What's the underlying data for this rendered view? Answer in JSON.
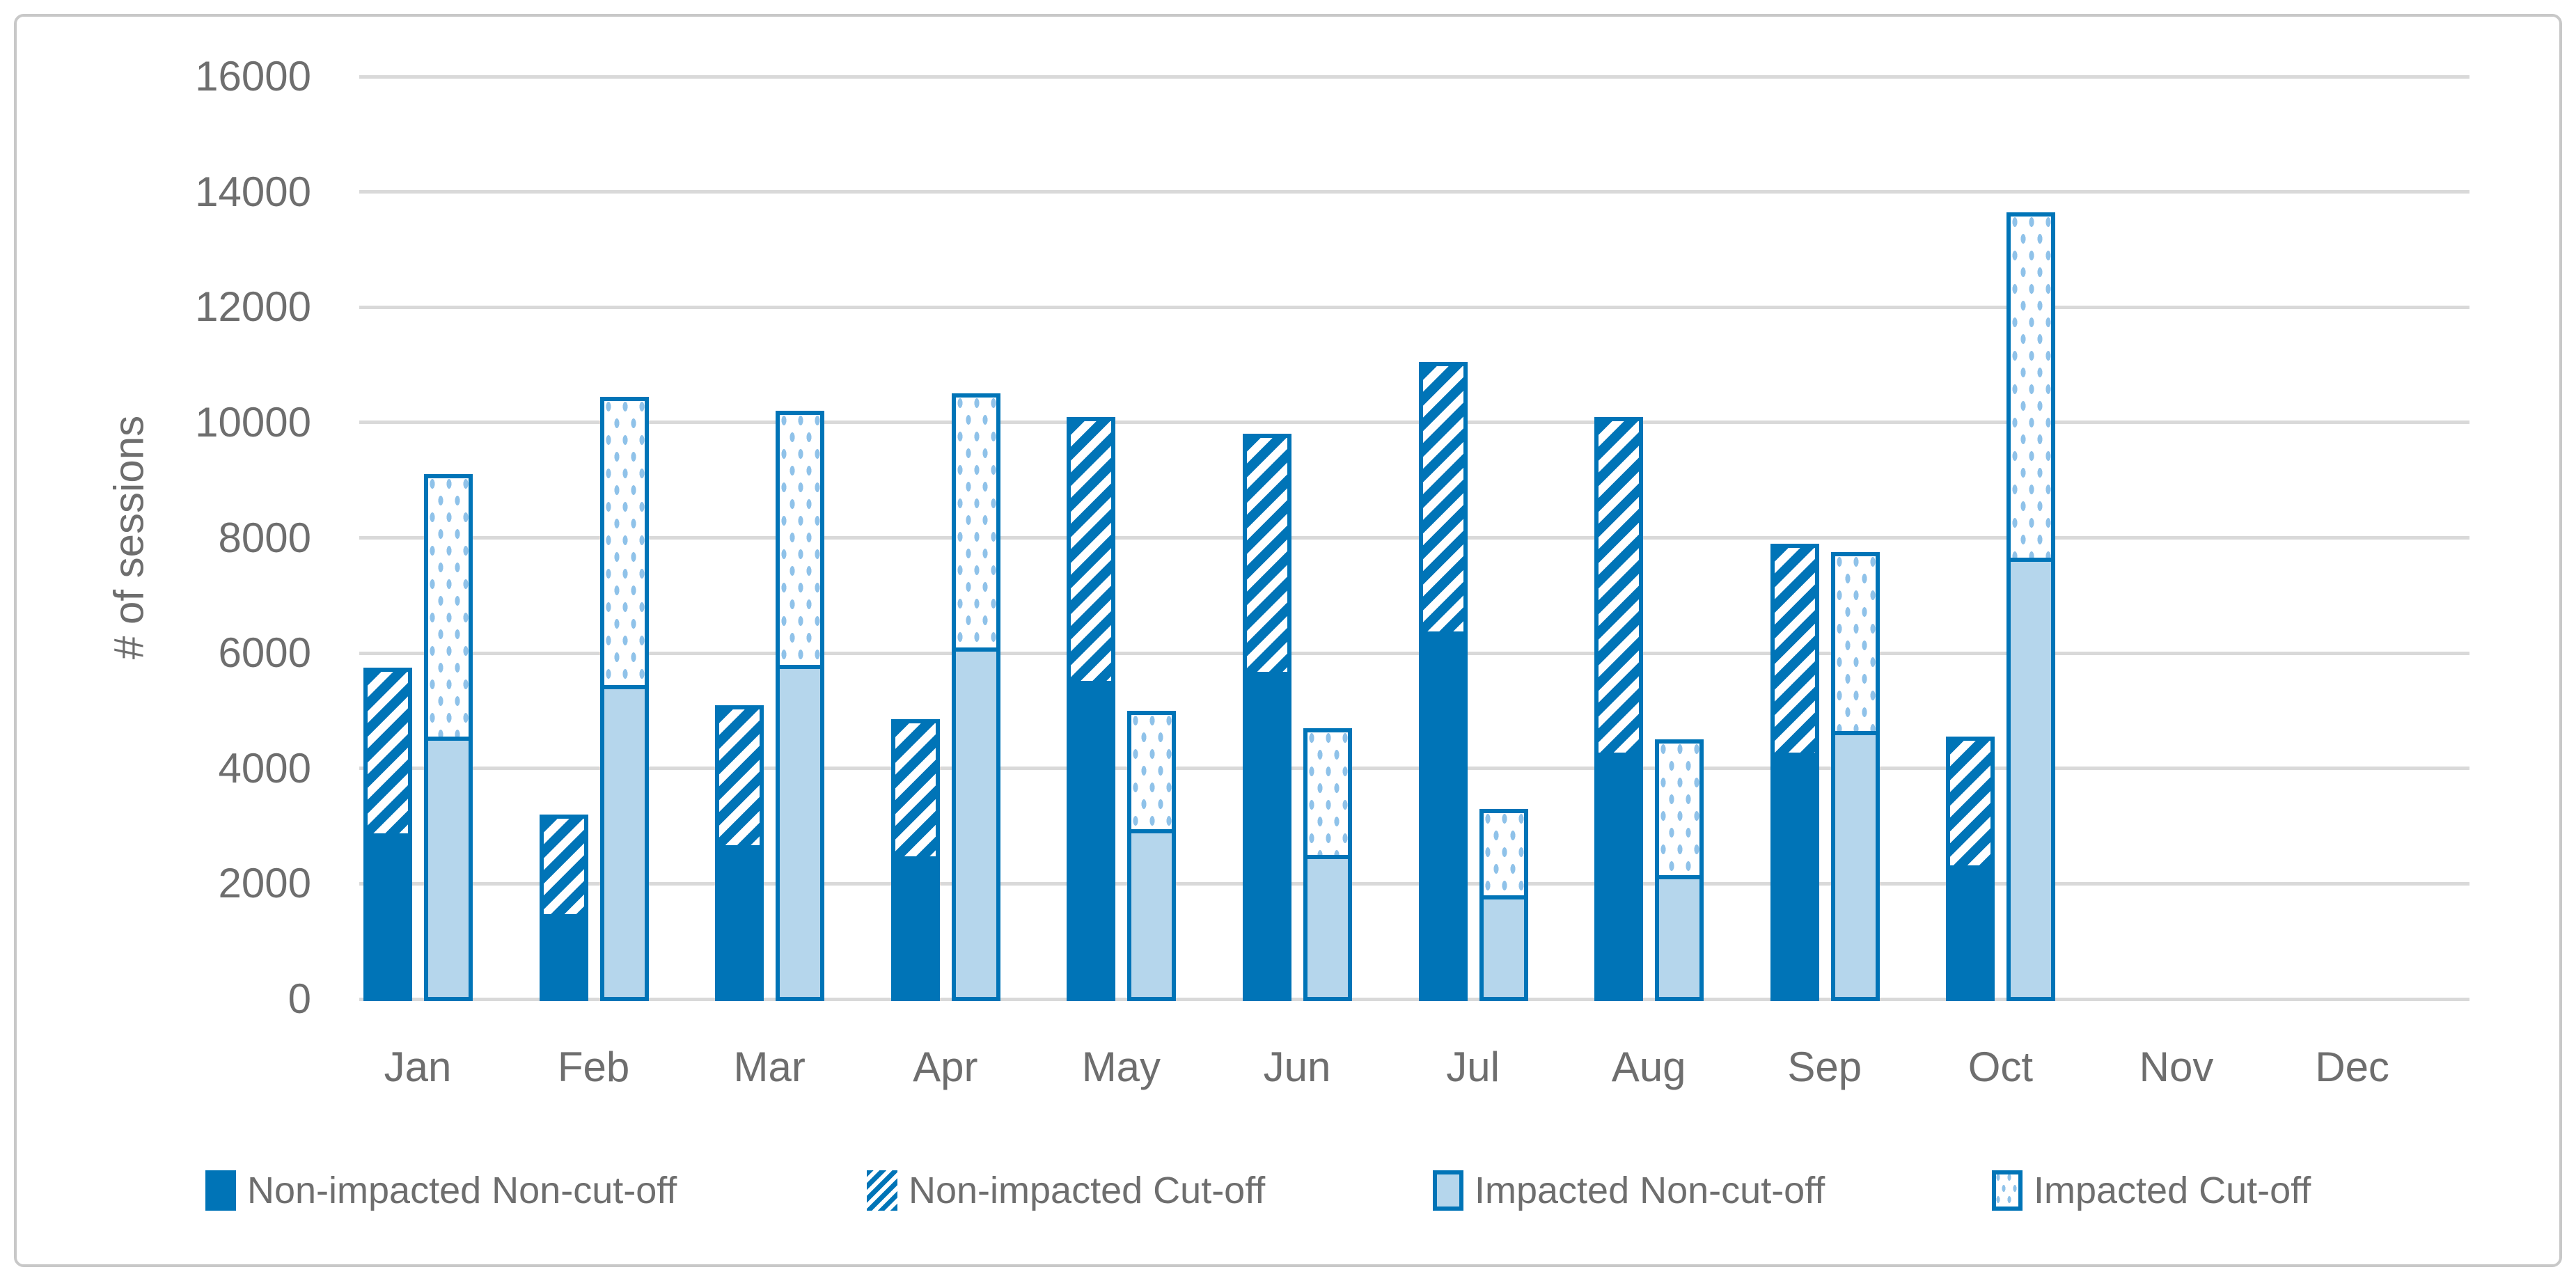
{
  "figure": {
    "background": "#FFFFFF"
  },
  "chart_data": {
    "type": "bar",
    "stacked": true,
    "orientation": "vertical",
    "title": "",
    "xlabel": "",
    "ylabel": "# of sessions",
    "ylim": [
      0,
      16000
    ],
    "y_ticks": [
      0,
      2000,
      4000,
      6000,
      8000,
      10000,
      12000,
      14000,
      16000
    ],
    "grid": true,
    "legend_position": "bottom",
    "categories": [
      "Jan",
      "Feb",
      "Mar",
      "Apr",
      "May",
      "Jun",
      "Jul",
      "Aug",
      "Sep",
      "Oct",
      "Nov",
      "Dec"
    ],
    "stacks": [
      {
        "name": "Non-impacted",
        "series_indexes": [
          0,
          1
        ]
      },
      {
        "name": "Impacted",
        "series_indexes": [
          2,
          3
        ]
      }
    ],
    "series": [
      {
        "name": "Non-impacted Non-cut-off",
        "pattern": "solid-dark",
        "values": [
          2800,
          1400,
          2600,
          2400,
          5450,
          5600,
          6300,
          4200,
          4200,
          2250,
          0,
          0
        ]
      },
      {
        "name": "Non-impacted Cut-off",
        "pattern": "hatch-diagonal",
        "values": [
          2950,
          1800,
          2500,
          2450,
          4650,
          4200,
          4750,
          5900,
          3700,
          2300,
          0,
          0
        ]
      },
      {
        "name": "Impacted Non-cut-off",
        "pattern": "solid-light",
        "values": [
          4550,
          5450,
          5800,
          6100,
          2950,
          2500,
          1800,
          2150,
          4650,
          7650,
          0,
          0
        ]
      },
      {
        "name": "Impacted Cut-off",
        "pattern": "dotted-light",
        "values": [
          4550,
          5000,
          4400,
          4400,
          2050,
          2200,
          1500,
          2350,
          3100,
          6000,
          0,
          0
        ]
      }
    ],
    "colors": {
      "dark_blue": "#0074B7",
      "light_blue": "#B5D6EC",
      "dot_blue": "#8FC2E9",
      "gridline_gray": "#D9D9D9",
      "text_gray": "#6E6E6E",
      "figure_border_gray": "#C8C8C8"
    }
  }
}
